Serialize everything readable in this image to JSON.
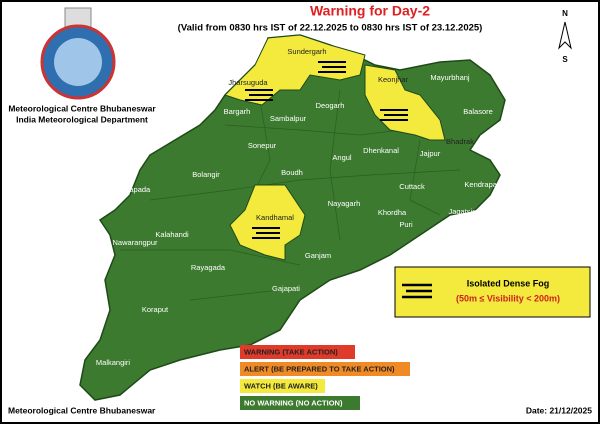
{
  "header": {
    "title": "Warning for Day-2",
    "subtitle": "(Valid from 0830 hrs IST of 22.12.2025 to 0830 hrs IST of 23.12.2025)"
  },
  "organization": {
    "name": "Meteorological Centre Bhubaneswar",
    "department": "India Meteorological Department"
  },
  "compass": {
    "north": "N",
    "south": "S"
  },
  "districts": [
    "Sundergarh",
    "Jharsuguda",
    "Bargarh",
    "Sambalpur",
    "Deogarh",
    "Keonjhar",
    "Mayurbhanj",
    "Balasore",
    "Bhadrak",
    "Jajpur",
    "Dhenkanal",
    "Angul",
    "Sonepur",
    "Boudh",
    "Bolangir",
    "Nuapada",
    "Kalahandi",
    "Kandhamal",
    "Nayagarh",
    "Cuttack",
    "Kendrapara",
    "Jagatsinghpur",
    "Khordha",
    "Puri",
    "Ganjam",
    "Gajapati",
    "Rayagada",
    "Nawarangpur",
    "Koraput",
    "Malkangiri"
  ],
  "fog_legend": {
    "label": "Isolated Dense Fog",
    "range": "(50m ≤ Visibility < 200m)"
  },
  "legend": [
    "WARNING (TAKE ACTION)",
    "ALERT (BE PREPARED TO TAKE ACTION)",
    "WATCH (BE AWARE)",
    "NO WARNING (NO ACTION)"
  ],
  "footer": {
    "left": "Meteorological Centre Bhubaneswar",
    "date": "Date: 21/12/2025"
  }
}
